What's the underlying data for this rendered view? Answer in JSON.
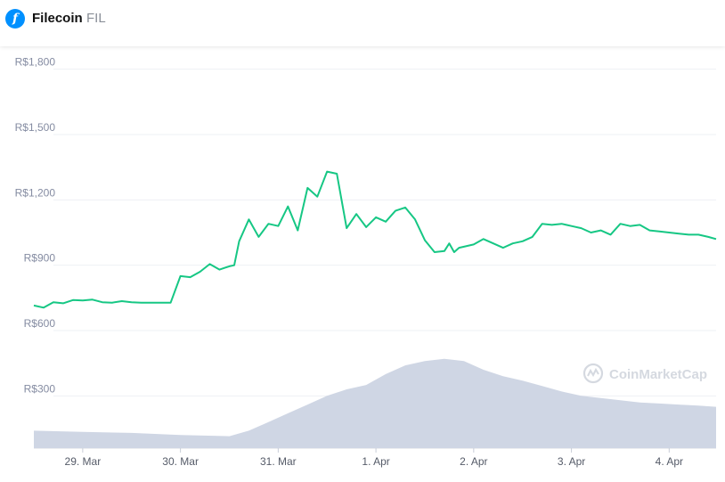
{
  "header": {
    "coin_name": "Filecoin",
    "coin_symbol": "FIL",
    "icon": "filecoin-logo-icon",
    "icon_glyph": "f"
  },
  "watermark": {
    "text": "CoinMarketCap"
  },
  "colors": {
    "price_line": "#16c784",
    "volume_fill": "#cfd6e4",
    "grid": "#eef0f4",
    "tick_text": "#858ca2",
    "brand_blue": "#0090ff"
  },
  "chart_data": {
    "type": "line",
    "title": "",
    "xlabel": "",
    "ylabel": "",
    "y_ticks": [
      {
        "value": 300,
        "label": "R$300"
      },
      {
        "value": 600,
        "label": "R$600"
      },
      {
        "value": 900,
        "label": "R$900"
      },
      {
        "value": 1200,
        "label": "R$1,200"
      },
      {
        "value": 1500,
        "label": "R$1,500"
      },
      {
        "value": 1800,
        "label": "R$1,800"
      }
    ],
    "x_ticks": [
      {
        "value": 1.5,
        "label": "29. Mar"
      },
      {
        "value": 2.5,
        "label": "30. Mar"
      },
      {
        "value": 3.5,
        "label": "31. Mar"
      },
      {
        "value": 4.5,
        "label": "1. Apr"
      },
      {
        "value": 5.5,
        "label": "2. Apr"
      },
      {
        "value": 6.5,
        "label": "3. Apr"
      },
      {
        "value": 7.5,
        "label": "4. Apr"
      }
    ],
    "xlim": [
      1.0,
      7.98
    ],
    "ylim": [
      60,
      1905
    ],
    "grid": true,
    "series": [
      {
        "kind": "price",
        "x": [
          1.0,
          1.1,
          1.2,
          1.3,
          1.4,
          1.5,
          1.6,
          1.7,
          1.8,
          1.9,
          2.0,
          2.1,
          2.2,
          2.3,
          2.4,
          2.5,
          2.6,
          2.7,
          2.8,
          2.9,
          3.0,
          3.05,
          3.1,
          3.2,
          3.3,
          3.4,
          3.5,
          3.6,
          3.7,
          3.8,
          3.9,
          4.0,
          4.1,
          4.2,
          4.3,
          4.4,
          4.5,
          4.6,
          4.7,
          4.8,
          4.9,
          5.0,
          5.1,
          5.2,
          5.25,
          5.3,
          5.35,
          5.4,
          5.5,
          5.6,
          5.7,
          5.8,
          5.9,
          6.0,
          6.1,
          6.2,
          6.3,
          6.4,
          6.5,
          6.6,
          6.7,
          6.8,
          6.9,
          7.0,
          7.1,
          7.2,
          7.3,
          7.4,
          7.5,
          7.6,
          7.7,
          7.8,
          7.9,
          7.98
        ],
        "y": [
          715,
          705,
          730,
          725,
          740,
          738,
          742,
          730,
          728,
          735,
          730,
          728,
          728,
          728,
          728,
          850,
          845,
          870,
          905,
          880,
          895,
          900,
          1010,
          1110,
          1030,
          1090,
          1080,
          1170,
          1060,
          1255,
          1215,
          1330,
          1320,
          1070,
          1135,
          1075,
          1120,
          1100,
          1150,
          1165,
          1110,
          1015,
          960,
          965,
          1000,
          960,
          980,
          985,
          995,
          1020,
          1000,
          980,
          1000,
          1010,
          1030,
          1090,
          1085,
          1090,
          1080,
          1070,
          1050,
          1060,
          1040,
          1090,
          1080,
          1085,
          1060,
          1055,
          1050,
          1045,
          1040,
          1040,
          1030,
          1020
        ]
      },
      {
        "kind": "volume",
        "x": [
          1.0,
          1.5,
          2.0,
          2.5,
          3.0,
          3.2,
          3.4,
          3.6,
          3.8,
          4.0,
          4.2,
          4.4,
          4.6,
          4.8,
          5.0,
          5.2,
          5.4,
          5.6,
          5.8,
          6.0,
          6.2,
          6.4,
          6.6,
          6.8,
          7.0,
          7.2,
          7.4,
          7.6,
          7.8,
          7.98
        ],
        "y": [
          140,
          135,
          130,
          120,
          115,
          140,
          180,
          220,
          260,
          300,
          330,
          350,
          400,
          440,
          460,
          470,
          460,
          420,
          390,
          370,
          345,
          320,
          300,
          290,
          280,
          270,
          265,
          260,
          255,
          250
        ]
      }
    ]
  }
}
